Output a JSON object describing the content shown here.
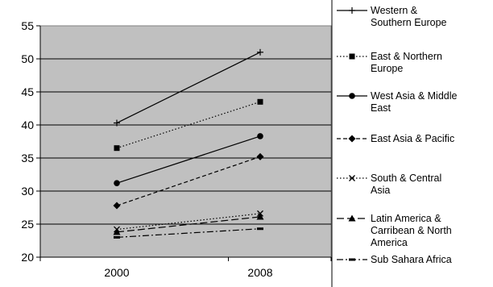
{
  "chart_data": {
    "type": "line",
    "title": "",
    "xlabel": "",
    "ylabel": "",
    "x": [
      "2000",
      "2008"
    ],
    "ylim": [
      20,
      55
    ],
    "yticks": [
      20,
      25,
      30,
      35,
      40,
      45,
      50,
      55
    ],
    "grid": "horizontal",
    "legend_position": "right",
    "plot_background": "#c0c0c0",
    "series": [
      {
        "name": "Western & Southern Europe",
        "values": [
          40.3,
          51.0
        ],
        "marker": "plus",
        "dash": "solid"
      },
      {
        "name": "East & Northern Europe",
        "values": [
          36.5,
          43.5
        ],
        "marker": "square",
        "dash": "dotted"
      },
      {
        "name": "West Asia & Middle East",
        "values": [
          31.2,
          38.3
        ],
        "marker": "circle",
        "dash": "solid"
      },
      {
        "name": "East Asia & Pacific",
        "values": [
          27.8,
          35.2
        ],
        "marker": "diamond",
        "dash": "dashed"
      },
      {
        "name": "South & Central Asia",
        "values": [
          24.2,
          26.6
        ],
        "marker": "x",
        "dash": "dotted"
      },
      {
        "name": "Latin America & Carribean & North America",
        "values": [
          23.8,
          26.1
        ],
        "marker": "triangle",
        "dash": "longdash"
      },
      {
        "name": "Sub Sahara Africa",
        "values": [
          23.0,
          24.3
        ],
        "marker": "dash",
        "dash": "dashdot"
      }
    ]
  }
}
